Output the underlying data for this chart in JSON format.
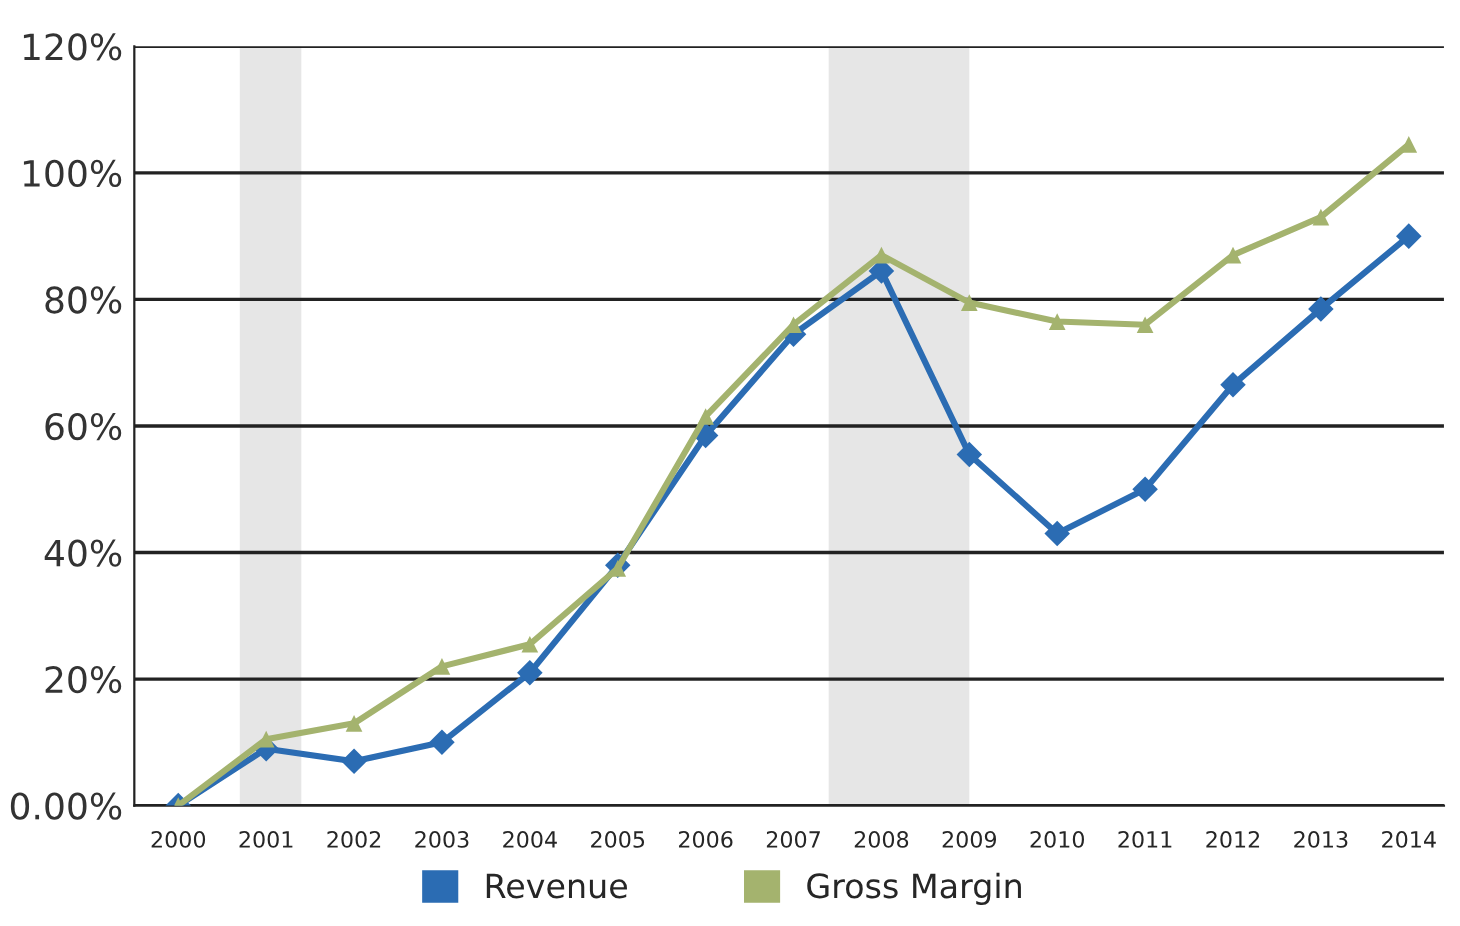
{
  "chart_data": {
    "type": "line",
    "x": [
      2000,
      2001,
      2002,
      2003,
      2004,
      2005,
      2006,
      2007,
      2008,
      2009,
      2010,
      2011,
      2012,
      2013,
      2014
    ],
    "series": [
      {
        "name": "Revenue",
        "color": "#2b6cb3",
        "marker": "diamond",
        "values": [
          0,
          9,
          7,
          10,
          21,
          38,
          58.5,
          74.5,
          84.5,
          55.5,
          43,
          50,
          66.5,
          78.5,
          90
        ]
      },
      {
        "name": "Gross Margin",
        "color": "#a4b36e",
        "marker": "triangle",
        "values": [
          0,
          10.5,
          13,
          22,
          25.5,
          37.5,
          61.5,
          76,
          87,
          79.5,
          76.5,
          76,
          87,
          93,
          104.5
        ]
      }
    ],
    "xlim": [
      1999.5,
      2014.4
    ],
    "xticks": [
      2000,
      2001,
      2002,
      2003,
      2004,
      2005,
      2006,
      2007,
      2008,
      2009,
      2010,
      2011,
      2012,
      2013,
      2014
    ],
    "ylim": [
      0,
      120
    ],
    "yticks": [
      {
        "value": 0,
        "label": "0.00%"
      },
      {
        "value": 20,
        "label": "20%"
      },
      {
        "value": 40,
        "label": "40%"
      },
      {
        "value": 60,
        "label": "60%"
      },
      {
        "value": 80,
        "label": "80%"
      },
      {
        "value": 100,
        "label": "100%"
      },
      {
        "value": 120,
        "label": "120%"
      }
    ],
    "bands": [
      {
        "axis": "x",
        "from": 2000.7,
        "to": 2001.4,
        "color": "#e6e6e6"
      },
      {
        "axis": "x",
        "from": 2007.4,
        "to": 2009.0,
        "color": "#e6e6e6"
      }
    ],
    "grid": "y",
    "legend": "bottom",
    "line_style": "solid"
  }
}
